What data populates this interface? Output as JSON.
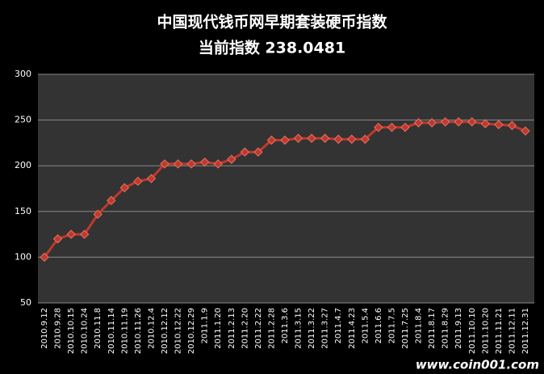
{
  "chart_data": {
    "type": "line",
    "title": "中国现代钱币网早期套装硬币指数",
    "subtitle": "当前指数 238.0481",
    "watermark": "www.coin001.com",
    "categories": [
      "2010.9.12",
      "2010.9.28",
      "2010.10.15",
      "2010.10.24",
      "2010.11.8",
      "2010.11.14",
      "2010.11.19",
      "2010.11.26",
      "2010.12.4",
      "2010.12.12",
      "2010.12.22",
      "2010.12.29",
      "2011.1.9",
      "2011.1.20",
      "2011.2.13",
      "2011.2.20",
      "2011.2.22",
      "2011.2.28",
      "2011.3.6",
      "2011.3.15",
      "2011.3.22",
      "2011.3.27",
      "2011.4.7",
      "2011.4.23",
      "2011.5.4",
      "2011.6.6",
      "2011.7.5",
      "2011.7.25",
      "2011.8.4",
      "2011.8.17",
      "2011.8.29",
      "2011.9.13",
      "2011.10.10",
      "2011.10.20",
      "2011.11.21",
      "2011.12.11",
      "2011.12.31"
    ],
    "values": [
      100,
      120,
      125,
      125,
      147,
      162,
      176,
      183,
      186,
      202,
      202,
      202,
      204,
      202,
      207,
      215,
      215,
      228,
      228,
      230,
      230,
      230,
      229,
      229,
      229,
      242,
      242,
      242,
      247,
      247,
      248,
      248,
      248,
      246,
      245,
      244,
      238
    ],
    "color": "#c0392b",
    "ylim": [
      50,
      300
    ],
    "yticks": [
      50,
      100,
      150,
      200,
      250,
      300
    ],
    "grid": true
  }
}
